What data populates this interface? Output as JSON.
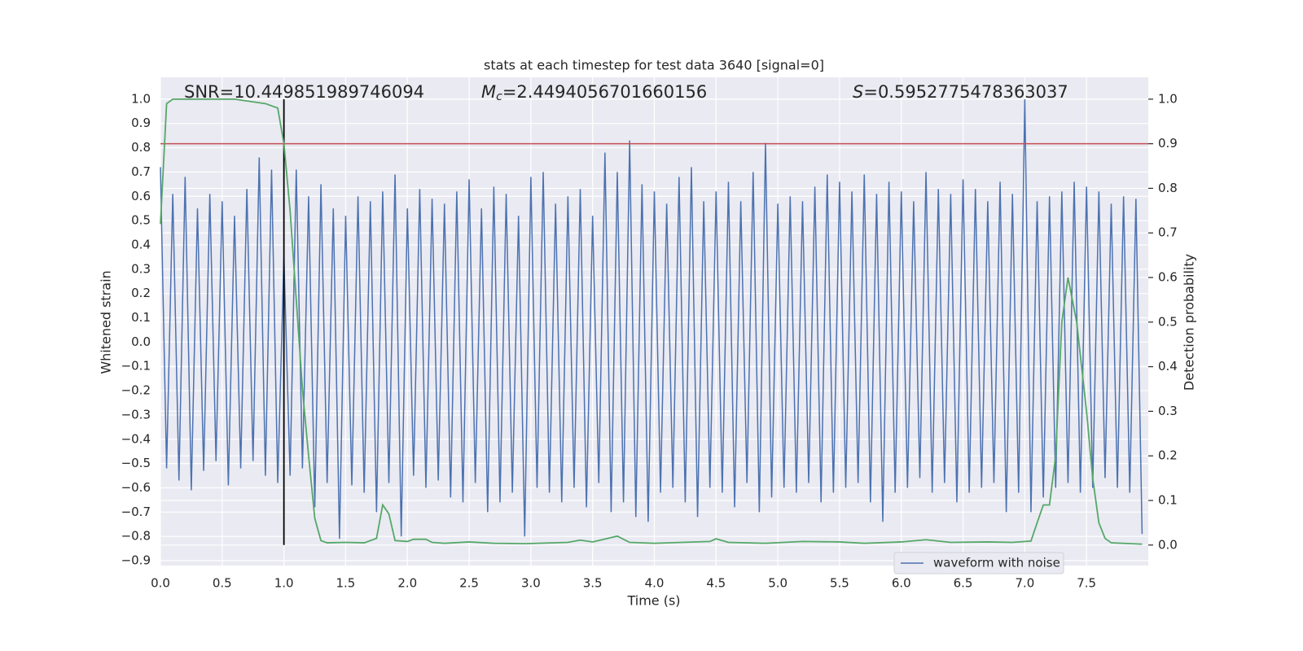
{
  "chart_data": {
    "type": "line",
    "title": "stats at each timestep for test data 3640 [signal=0]",
    "xlabel": "Time (s)",
    "ylabel": "Whitened strain",
    "y2label": "Detection probability",
    "annotations": [
      {
        "text": "SNR=10.449851989746094"
      },
      {
        "symbol": "M",
        "subscript": "c",
        "text": "=2.4494056701660156"
      },
      {
        "symbol": "S",
        "text": "=0.5952775478363037"
      }
    ],
    "xlim": [
      0,
      8
    ],
    "ylim": [
      -0.92,
      1.09
    ],
    "y2lim": [
      -0.046,
      1.049
    ],
    "xticks": [
      {
        "value": 0,
        "label": "0.0"
      },
      0.5,
      {
        "value": 1,
        "label": "1.0"
      },
      1.5,
      {
        "value": 2,
        "label": "2.0"
      },
      2.5,
      {
        "value": 3,
        "label": "3.0"
      },
      3.5,
      {
        "value": 4,
        "label": "4.0"
      },
      4.5,
      {
        "value": 5,
        "label": "5.0"
      },
      5.5,
      {
        "value": 6,
        "label": "6.0"
      },
      6.5,
      {
        "value": 7,
        "label": "7.0"
      },
      7.5
    ],
    "yticks": [
      {
        "value": -0.9,
        "label": "−0.9"
      },
      {
        "value": -0.8,
        "label": "−0.8"
      },
      {
        "value": -0.7,
        "label": "−0.7"
      },
      {
        "value": -0.6,
        "label": "−0.6"
      },
      {
        "value": -0.5,
        "label": "−0.5"
      },
      {
        "value": -0.4,
        "label": "−0.4"
      },
      {
        "value": -0.3,
        "label": "−0.3"
      },
      {
        "value": -0.2,
        "label": "−0.2"
      },
      {
        "value": -0.1,
        "label": "−0.1"
      },
      {
        "value": 0,
        "label": "0.0"
      },
      0.1,
      0.2,
      0.3,
      0.4,
      0.5,
      0.6,
      0.7,
      0.8,
      0.9,
      {
        "value": 1,
        "label": "1.0"
      }
    ],
    "y2ticks": [
      {
        "value": 0,
        "label": "0.0"
      },
      0.1,
      0.2,
      0.3,
      0.4,
      0.5,
      0.6,
      0.7,
      0.8,
      0.9,
      {
        "value": 1,
        "label": "1.0"
      }
    ],
    "grid": true,
    "legend": "lower right",
    "series": [
      {
        "name": "waveform with noise",
        "color": "#4c72b0",
        "x": [
          0.0,
          0.05,
          0.1,
          0.15,
          0.2,
          0.25,
          0.3,
          0.35,
          0.4,
          0.45,
          0.5,
          0.55,
          0.6,
          0.65,
          0.7,
          0.75,
          0.8,
          0.85,
          0.9,
          0.95,
          1.0,
          1.05,
          1.1,
          1.15,
          1.2,
          1.25,
          1.3,
          1.35,
          1.4,
          1.45,
          1.5,
          1.55,
          1.6,
          1.65,
          1.7,
          1.75,
          1.8,
          1.85,
          1.9,
          1.95,
          2.0,
          2.05,
          2.1,
          2.15,
          2.2,
          2.25,
          2.3,
          2.35,
          2.4,
          2.45,
          2.5,
          2.55,
          2.6,
          2.65,
          2.7,
          2.75,
          2.8,
          2.85,
          2.9,
          2.95,
          3.0,
          3.05,
          3.1,
          3.15,
          3.2,
          3.25,
          3.3,
          3.35,
          3.4,
          3.45,
          3.5,
          3.55,
          3.6,
          3.65,
          3.7,
          3.75,
          3.8,
          3.85,
          3.9,
          3.95,
          4.0,
          4.05,
          4.1,
          4.15,
          4.2,
          4.25,
          4.3,
          4.35,
          4.4,
          4.45,
          4.5,
          4.55,
          4.6,
          4.65,
          4.7,
          4.75,
          4.8,
          4.85,
          4.9,
          4.95,
          5.0,
          5.05,
          5.1,
          5.15,
          5.2,
          5.25,
          5.3,
          5.35,
          5.4,
          5.45,
          5.5,
          5.55,
          5.6,
          5.65,
          5.7,
          5.75,
          5.8,
          5.85,
          5.9,
          5.95,
          6.0,
          6.05,
          6.1,
          6.15,
          6.2,
          6.25,
          6.3,
          6.35,
          6.4,
          6.45,
          6.5,
          6.55,
          6.6,
          6.65,
          6.7,
          6.75,
          6.8,
          6.85,
          6.9,
          6.95,
          7.0,
          7.05,
          7.1,
          7.15,
          7.2,
          7.25,
          7.3,
          7.35,
          7.4,
          7.45,
          7.5,
          7.55,
          7.6,
          7.65,
          7.7,
          7.75,
          7.8,
          7.85,
          7.9,
          7.95
        ],
        "values": [
          0.72,
          -0.52,
          0.61,
          -0.57,
          0.68,
          -0.61,
          0.55,
          -0.53,
          0.61,
          -0.49,
          0.58,
          -0.59,
          0.52,
          -0.52,
          0.63,
          -0.49,
          0.76,
          -0.55,
          0.71,
          -0.58,
          0.35,
          -0.55,
          0.71,
          -0.52,
          0.6,
          -0.68,
          0.65,
          -0.58,
          0.55,
          -0.81,
          0.52,
          -0.59,
          0.6,
          -0.62,
          0.58,
          -0.7,
          0.62,
          -0.58,
          0.69,
          -0.8,
          0.55,
          -0.55,
          0.63,
          -0.6,
          0.59,
          -0.57,
          0.57,
          -0.64,
          0.62,
          -0.66,
          0.67,
          -0.58,
          0.55,
          -0.7,
          0.64,
          -0.66,
          0.61,
          -0.62,
          0.52,
          -0.8,
          0.68,
          -0.6,
          0.7,
          -0.62,
          0.57,
          -0.66,
          0.6,
          -0.6,
          0.63,
          -0.68,
          0.52,
          -0.58,
          0.78,
          -0.7,
          0.7,
          -0.66,
          0.83,
          -0.72,
          0.65,
          -0.74,
          0.62,
          -0.62,
          0.57,
          -0.6,
          0.68,
          -0.66,
          0.72,
          -0.72,
          0.58,
          -0.6,
          0.62,
          -0.62,
          0.66,
          -0.68,
          0.58,
          -0.58,
          0.7,
          -0.7,
          0.82,
          -0.64,
          0.57,
          -0.6,
          0.6,
          -0.62,
          0.58,
          -0.58,
          0.64,
          -0.66,
          0.69,
          -0.62,
          0.66,
          -0.6,
          0.62,
          -0.58,
          0.69,
          -0.66,
          0.61,
          -0.74,
          0.66,
          -0.62,
          0.62,
          -0.6,
          0.58,
          -0.56,
          0.7,
          -0.62,
          0.63,
          -0.58,
          0.61,
          -0.66,
          0.67,
          -0.62,
          0.63,
          -0.6,
          0.58,
          -0.58,
          0.66,
          -0.7,
          0.61,
          -0.62,
          1.0,
          -0.7,
          0.58,
          -0.64,
          0.6,
          -0.6,
          0.62,
          -0.58,
          0.66,
          -0.62,
          0.64,
          -0.6,
          0.62,
          -0.56,
          0.57,
          -0.6,
          0.6,
          -0.62,
          0.59,
          -0.79
        ]
      },
      {
        "name": "detection probability",
        "color": "#55a868",
        "axis": "y2",
        "x": [
          0.0,
          0.05,
          0.1,
          0.3,
          0.6,
          0.85,
          0.95,
          1.0,
          1.05,
          1.1,
          1.15,
          1.2,
          1.25,
          1.3,
          1.35,
          1.5,
          1.65,
          1.75,
          1.8,
          1.85,
          1.9,
          2.0,
          2.05,
          2.15,
          2.2,
          2.3,
          2.5,
          2.7,
          2.95,
          3.3,
          3.4,
          3.5,
          3.7,
          3.8,
          4.0,
          4.45,
          4.5,
          4.6,
          4.9,
          5.2,
          5.5,
          5.7,
          6.0,
          6.2,
          6.4,
          6.7,
          6.9,
          7.05,
          7.1,
          7.15,
          7.2,
          7.25,
          7.3,
          7.35,
          7.42,
          7.5,
          7.55,
          7.6,
          7.65,
          7.7,
          7.95
        ],
        "values": [
          0.72,
          0.99,
          1.0,
          1.0,
          1.0,
          0.99,
          0.98,
          0.9,
          0.75,
          0.55,
          0.35,
          0.2,
          0.06,
          0.01,
          0.005,
          0.006,
          0.005,
          0.015,
          0.09,
          0.07,
          0.01,
          0.008,
          0.013,
          0.013,
          0.006,
          0.004,
          0.007,
          0.004,
          0.003,
          0.006,
          0.011,
          0.007,
          0.02,
          0.006,
          0.004,
          0.008,
          0.014,
          0.006,
          0.004,
          0.008,
          0.007,
          0.004,
          0.007,
          0.012,
          0.006,
          0.007,
          0.006,
          0.009,
          0.05,
          0.09,
          0.09,
          0.2,
          0.5,
          0.6,
          0.5,
          0.3,
          0.15,
          0.05,
          0.015,
          0.005,
          0.002
        ]
      }
    ],
    "threshold": {
      "value": 0.9,
      "axis": "y2",
      "color": "#c44e52"
    },
    "vline": {
      "x": 1.0,
      "ymin": 0,
      "ymax": 1,
      "axis": "y2",
      "color": "#000000"
    }
  }
}
